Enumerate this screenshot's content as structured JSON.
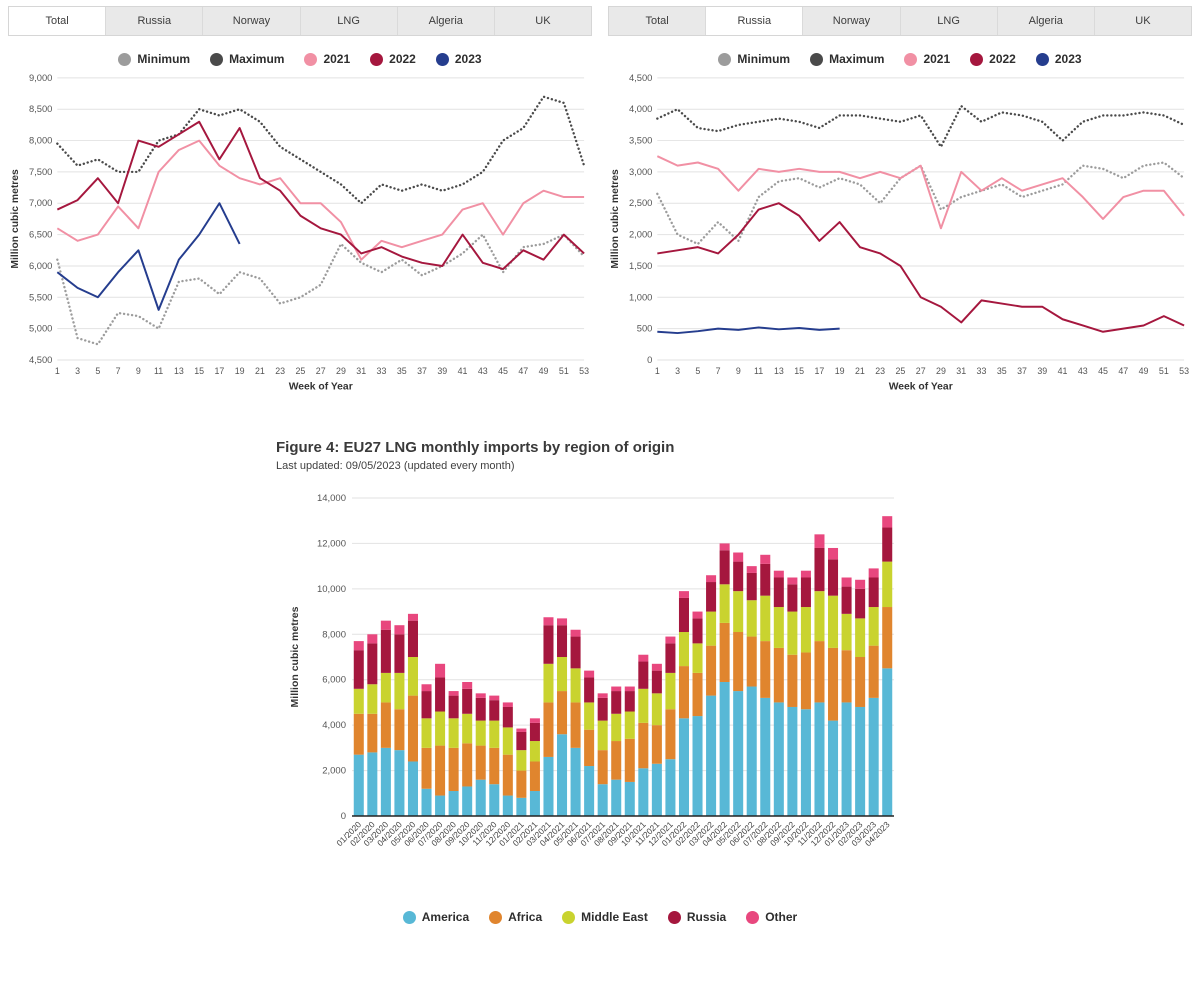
{
  "panels": [
    {
      "name": "weekly-total",
      "tabs": [
        {
          "label": "Total",
          "active": true
        },
        {
          "label": "Russia",
          "active": false
        },
        {
          "label": "Norway",
          "active": false
        },
        {
          "label": "LNG",
          "active": false
        },
        {
          "label": "Algeria",
          "active": false
        },
        {
          "label": "UK",
          "active": false
        }
      ]
    },
    {
      "name": "weekly-russia",
      "tabs": [
        {
          "label": "Total",
          "active": false
        },
        {
          "label": "Russia",
          "active": true
        },
        {
          "label": "Norway",
          "active": false
        },
        {
          "label": "LNG",
          "active": false
        },
        {
          "label": "Algeria",
          "active": false
        },
        {
          "label": "UK",
          "active": false
        }
      ]
    }
  ],
  "figure": {
    "title": "Figure 4: EU27 LNG monthly imports by region of origin",
    "subtitle": "Last updated: 09/05/2023 (updated every month)"
  },
  "colors": {
    "minimum": "#9c9c9c",
    "maximum": "#4a4a4a",
    "y2021": "#f190a4",
    "y2022": "#a5173e",
    "y2023": "#253d8e",
    "america": "#58b8d6",
    "africa": "#e0852e",
    "middle_east": "#c9d32f",
    "russia": "#a5173e",
    "other": "#e8477e",
    "tab_active": "#ffffff",
    "tab_inactive": "#e9e9e9"
  },
  "chart_data": [
    {
      "id": "weekly-total",
      "type": "line",
      "title": "",
      "xlabel": "Week of Year",
      "ylabel": "Million cubic metres",
      "ylim": [
        4500,
        9000
      ],
      "ytick_step": 500,
      "grid": "horizontal",
      "legend_position": "top",
      "x": [
        1,
        3,
        5,
        7,
        9,
        11,
        13,
        15,
        17,
        19,
        21,
        23,
        25,
        27,
        29,
        31,
        33,
        35,
        37,
        39,
        41,
        43,
        45,
        47,
        49,
        51,
        53
      ],
      "series": [
        {
          "name": "Minimum",
          "color": "#9c9c9c",
          "style": "dotted",
          "values": [
            6100,
            4850,
            4750,
            5250,
            5200,
            5000,
            5750,
            5800,
            5550,
            5900,
            5800,
            5400,
            5500,
            5700,
            6350,
            6050,
            5900,
            6100,
            5850,
            6000,
            6200,
            6500,
            5900,
            6300,
            6350,
            6500,
            6150
          ]
        },
        {
          "name": "Maximum",
          "color": "#4a4a4a",
          "style": "dotted",
          "values": [
            7950,
            7600,
            7700,
            7500,
            7500,
            8000,
            8100,
            8500,
            8400,
            8500,
            8300,
            7900,
            7700,
            7500,
            7300,
            7000,
            7300,
            7200,
            7300,
            7200,
            7300,
            7500,
            8000,
            8200,
            8700,
            8600,
            7600
          ]
        },
        {
          "name": "2021",
          "color": "#f190a4",
          "style": "solid",
          "values": [
            6600,
            6400,
            6500,
            6950,
            6600,
            7500,
            7850,
            8000,
            7600,
            7400,
            7300,
            7400,
            7000,
            7000,
            6700,
            6100,
            6400,
            6300,
            6400,
            6500,
            6900,
            7000,
            6500,
            7000,
            7200,
            7100,
            7100
          ]
        },
        {
          "name": "2022",
          "color": "#a5173e",
          "style": "solid",
          "values": [
            6900,
            7050,
            7400,
            7000,
            8000,
            7900,
            8100,
            8300,
            7700,
            8200,
            7400,
            7200,
            6800,
            6600,
            6500,
            6200,
            6300,
            6150,
            6050,
            6000,
            6500,
            6050,
            5950,
            6250,
            6100,
            6500,
            6200
          ]
        },
        {
          "name": "2023",
          "color": "#253d8e",
          "style": "solid",
          "values": [
            5900,
            5650,
            5500,
            5900,
            6250,
            5300,
            6100,
            6500,
            7000,
            6350,
            null,
            null,
            null,
            null,
            null,
            null,
            null,
            null,
            null,
            null,
            null,
            null,
            null,
            null,
            null,
            null,
            null
          ]
        }
      ]
    },
    {
      "id": "weekly-russia",
      "type": "line",
      "title": "",
      "xlabel": "Week of Year",
      "ylabel": "Million cubic metres",
      "ylim": [
        0,
        4500
      ],
      "ytick_step": 500,
      "grid": "horizontal",
      "legend_position": "top",
      "x": [
        1,
        3,
        5,
        7,
        9,
        11,
        13,
        15,
        17,
        19,
        21,
        23,
        25,
        27,
        29,
        31,
        33,
        35,
        37,
        39,
        41,
        43,
        45,
        47,
        49,
        51,
        53
      ],
      "series": [
        {
          "name": "Minimum",
          "color": "#9c9c9c",
          "style": "dotted",
          "values": [
            2650,
            2000,
            1850,
            2200,
            1900,
            2600,
            2850,
            2900,
            2750,
            2900,
            2800,
            2500,
            2900,
            3100,
            2400,
            2600,
            2700,
            2800,
            2600,
            2700,
            2800,
            3100,
            3050,
            2900,
            3100,
            3150,
            2900
          ]
        },
        {
          "name": "Maximum",
          "color": "#4a4a4a",
          "style": "dotted",
          "values": [
            3850,
            4000,
            3700,
            3650,
            3750,
            3800,
            3850,
            3800,
            3700,
            3900,
            3900,
            3850,
            3800,
            3900,
            3400,
            4050,
            3800,
            3950,
            3900,
            3800,
            3500,
            3800,
            3900,
            3900,
            3950,
            3900,
            3750
          ]
        },
        {
          "name": "2021",
          "color": "#f190a4",
          "style": "solid",
          "values": [
            3250,
            3100,
            3150,
            3050,
            2700,
            3050,
            3000,
            3050,
            3000,
            3000,
            2900,
            3000,
            2900,
            3100,
            2100,
            3000,
            2700,
            2900,
            2700,
            2800,
            2900,
            2600,
            2250,
            2600,
            2700,
            2700,
            2300
          ]
        },
        {
          "name": "2022",
          "color": "#a5173e",
          "style": "solid",
          "values": [
            1700,
            1750,
            1800,
            1700,
            2000,
            2400,
            2500,
            2300,
            1900,
            2200,
            1800,
            1700,
            1500,
            1000,
            850,
            600,
            950,
            900,
            850,
            850,
            650,
            550,
            450,
            500,
            550,
            700,
            550
          ]
        },
        {
          "name": "2023",
          "color": "#253d8e",
          "style": "solid",
          "values": [
            450,
            430,
            460,
            500,
            480,
            520,
            490,
            510,
            480,
            500,
            null,
            null,
            null,
            null,
            null,
            null,
            null,
            null,
            null,
            null,
            null,
            null,
            null,
            null,
            null,
            null,
            null
          ]
        }
      ]
    },
    {
      "id": "monthly-lng-imports",
      "type": "bar",
      "stacked": true,
      "title": "Figure 4: EU27 LNG monthly imports by region of origin",
      "xlabel": "",
      "ylabel": "Million cubic metres",
      "ylim": [
        0,
        14000
      ],
      "ytick_step": 2000,
      "grid": "horizontal",
      "legend_position": "bottom",
      "categories": [
        "01/2020",
        "02/2020",
        "03/2020",
        "04/2020",
        "05/2020",
        "06/2020",
        "07/2020",
        "08/2020",
        "09/2020",
        "10/2020",
        "11/2020",
        "12/2020",
        "01/2021",
        "02/2021",
        "03/2021",
        "04/2021",
        "05/2021",
        "06/2021",
        "07/2021",
        "08/2021",
        "09/2021",
        "10/2021",
        "11/2021",
        "12/2021",
        "01/2022",
        "02/2022",
        "03/2022",
        "04/2022",
        "05/2022",
        "06/2022",
        "07/2022",
        "08/2022",
        "09/2022",
        "10/2022",
        "11/2022",
        "12/2022",
        "01/2023",
        "02/2023",
        "03/2023",
        "04/2023"
      ],
      "series": [
        {
          "name": "America",
          "color": "#58b8d6",
          "values": [
            2700,
            2800,
            3000,
            2900,
            2400,
            1200,
            900,
            1100,
            1300,
            1600,
            1400,
            900,
            800,
            1100,
            2600,
            3600,
            3000,
            2200,
            1400,
            1600,
            1500,
            2100,
            2300,
            2500,
            4300,
            4400,
            5300,
            5900,
            5500,
            5700,
            5200,
            5000,
            4800,
            4700,
            5000,
            4200,
            5000,
            4800,
            5200,
            6500
          ]
        },
        {
          "name": "Africa",
          "color": "#e0852e",
          "values": [
            1800,
            1700,
            2000,
            1800,
            2900,
            1800,
            2200,
            1900,
            1900,
            1500,
            1600,
            1800,
            1200,
            1300,
            2400,
            1900,
            2000,
            1600,
            1500,
            1700,
            1900,
            2000,
            1700,
            2200,
            2300,
            1900,
            2200,
            2600,
            2600,
            2200,
            2500,
            2400,
            2300,
            2500,
            2700,
            3200,
            2300,
            2200,
            2300,
            2700
          ]
        },
        {
          "name": "Middle East",
          "color": "#c9d32f",
          "values": [
            1100,
            1300,
            1300,
            1600,
            1700,
            1300,
            1500,
            1300,
            1300,
            1100,
            1200,
            1200,
            900,
            900,
            1700,
            1500,
            1500,
            1200,
            1300,
            1200,
            1200,
            1500,
            1400,
            1600,
            1500,
            1300,
            1500,
            1700,
            1800,
            1600,
            2000,
            1800,
            1900,
            2000,
            2200,
            2300,
            1600,
            1700,
            1700,
            2000
          ]
        },
        {
          "name": "Russia",
          "color": "#a5173e",
          "values": [
            1700,
            1800,
            1900,
            1700,
            1600,
            1200,
            1500,
            1000,
            1100,
            1000,
            900,
            900,
            800,
            800,
            1700,
            1400,
            1400,
            1100,
            1000,
            1000,
            900,
            1200,
            1000,
            1300,
            1500,
            1100,
            1300,
            1500,
            1300,
            1200,
            1400,
            1300,
            1200,
            1300,
            1900,
            1600,
            1200,
            1300,
            1300,
            1500
          ]
        },
        {
          "name": "Other",
          "color": "#e8477e",
          "values": [
            400,
            400,
            400,
            400,
            300,
            300,
            600,
            200,
            300,
            200,
            200,
            200,
            150,
            200,
            350,
            300,
            300,
            300,
            200,
            200,
            200,
            300,
            300,
            300,
            300,
            300,
            300,
            300,
            400,
            300,
            400,
            300,
            300,
            300,
            600,
            500,
            400,
            400,
            400,
            500
          ]
        }
      ]
    }
  ]
}
